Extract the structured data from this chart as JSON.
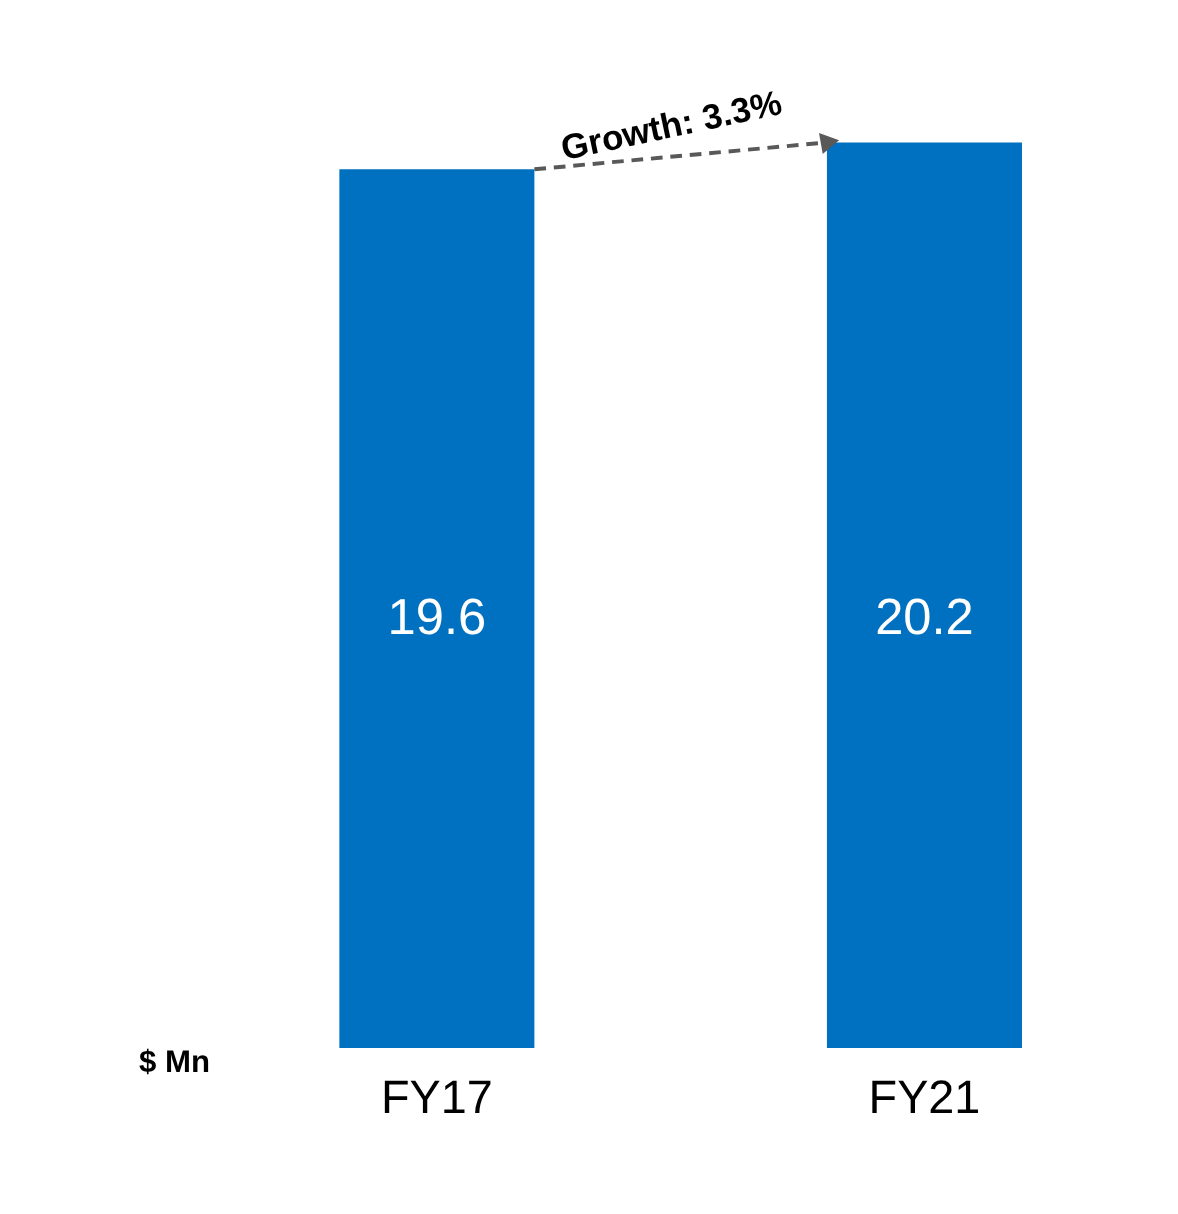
{
  "chart_data": {
    "type": "bar",
    "categories": [
      "FY17",
      "FY21"
    ],
    "values": [
      19.6,
      20.2
    ],
    "color": "#0070c0",
    "data_labels": true,
    "ylabel": "$ Mn",
    "annotations": [
      "Growth: 3.3%"
    ],
    "grid": false
  }
}
